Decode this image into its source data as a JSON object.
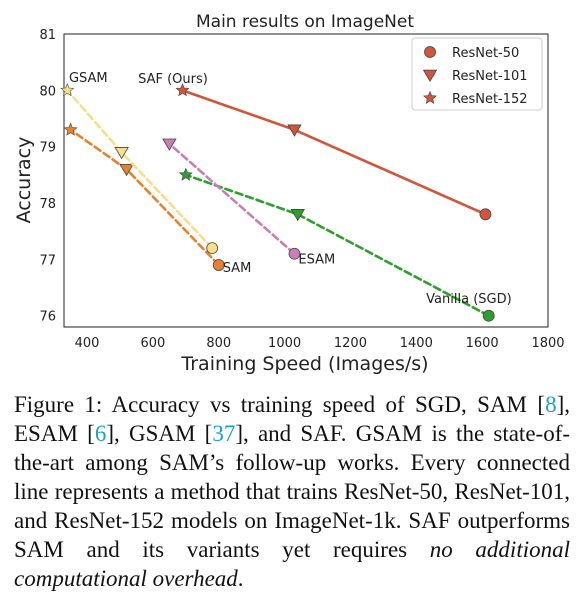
{
  "chart_data": {
    "type": "line",
    "title": "Main results on ImageNet",
    "xlabel": "Training Speed (Images/s)",
    "ylabel": "Accuracy",
    "xlim": [
      330,
      1800
    ],
    "ylim": [
      75.8,
      81
    ],
    "xticks": [
      400,
      600,
      800,
      1000,
      1200,
      1400,
      1600,
      1800
    ],
    "yticks": [
      76,
      77,
      78,
      79,
      80,
      81
    ],
    "grid": false,
    "legend_position": "top-right",
    "legend": [
      {
        "label": "ResNet-50",
        "marker": "circle"
      },
      {
        "label": "ResNet-101",
        "marker": "triangle-down"
      },
      {
        "label": "ResNet-152",
        "marker": "star"
      }
    ],
    "series": [
      {
        "name": "SAF (Ours)",
        "color": "#d2553a",
        "dashed": false,
        "points": [
          {
            "x": 1610,
            "y": 77.8,
            "model": "ResNet-50"
          },
          {
            "x": 1030,
            "y": 79.3,
            "model": "ResNet-101"
          },
          {
            "x": 690,
            "y": 80.0,
            "model": "ResNet-152"
          }
        ]
      },
      {
        "name": "Vanilla (SGD)",
        "color": "#2ca02c",
        "dashed": true,
        "points": [
          {
            "x": 1620,
            "y": 76.0,
            "model": "ResNet-50"
          },
          {
            "x": 1040,
            "y": 77.8,
            "model": "ResNet-101"
          },
          {
            "x": 700,
            "y": 78.5,
            "model": "ResNet-152"
          }
        ]
      },
      {
        "name": "ESAM",
        "color": "#c97fb5",
        "dashed": true,
        "points": [
          {
            "x": 1030,
            "y": 77.1,
            "model": "ResNet-50"
          },
          {
            "x": 650,
            "y": 79.05,
            "model": "ResNet-101"
          }
        ]
      },
      {
        "name": "SAM",
        "color": "#e8812f",
        "dashed": true,
        "points": [
          {
            "x": 800,
            "y": 76.9,
            "model": "ResNet-50"
          },
          {
            "x": 520,
            "y": 78.6,
            "model": "ResNet-101"
          },
          {
            "x": 350,
            "y": 79.3,
            "model": "ResNet-152"
          }
        ]
      },
      {
        "name": "GSAM",
        "color": "#f5df8a",
        "dashed": true,
        "points": [
          {
            "x": 780,
            "y": 77.2,
            "model": "ResNet-50"
          },
          {
            "x": 505,
            "y": 78.9,
            "model": "ResNet-101"
          },
          {
            "x": 340,
            "y": 80.0,
            "model": "ResNet-152"
          }
        ]
      }
    ],
    "annotations": [
      {
        "text": "SAF (Ours)",
        "x": 555,
        "y": 80.13
      },
      {
        "text": "GSAM",
        "x": 345,
        "y": 80.15
      },
      {
        "text": "SAM",
        "x": 812,
        "y": 76.78
      },
      {
        "text": "ESAM",
        "x": 1042,
        "y": 76.93
      },
      {
        "text": "Vanilla (SGD)",
        "x": 1430,
        "y": 76.23
      }
    ]
  },
  "caption": {
    "label": "Figure 1:",
    "part1": "Accuracy vs training speed of SGD, SAM [",
    "ref1": "8",
    "part2": "], ESAM [",
    "ref2": "6",
    "part3": "], GSAM [",
    "ref3": "37",
    "part4": "], and SAF. GSAM is the state-of-the-art among SAM’s follow-up works. Every connected line represents a method that trains ResNet-50, ResNet-101, and ResNet-152 models on ImageNet-1k. SAF outperforms SAM and its variants yet requires ",
    "emphasis": "no additional computational overhead",
    "end": "."
  }
}
